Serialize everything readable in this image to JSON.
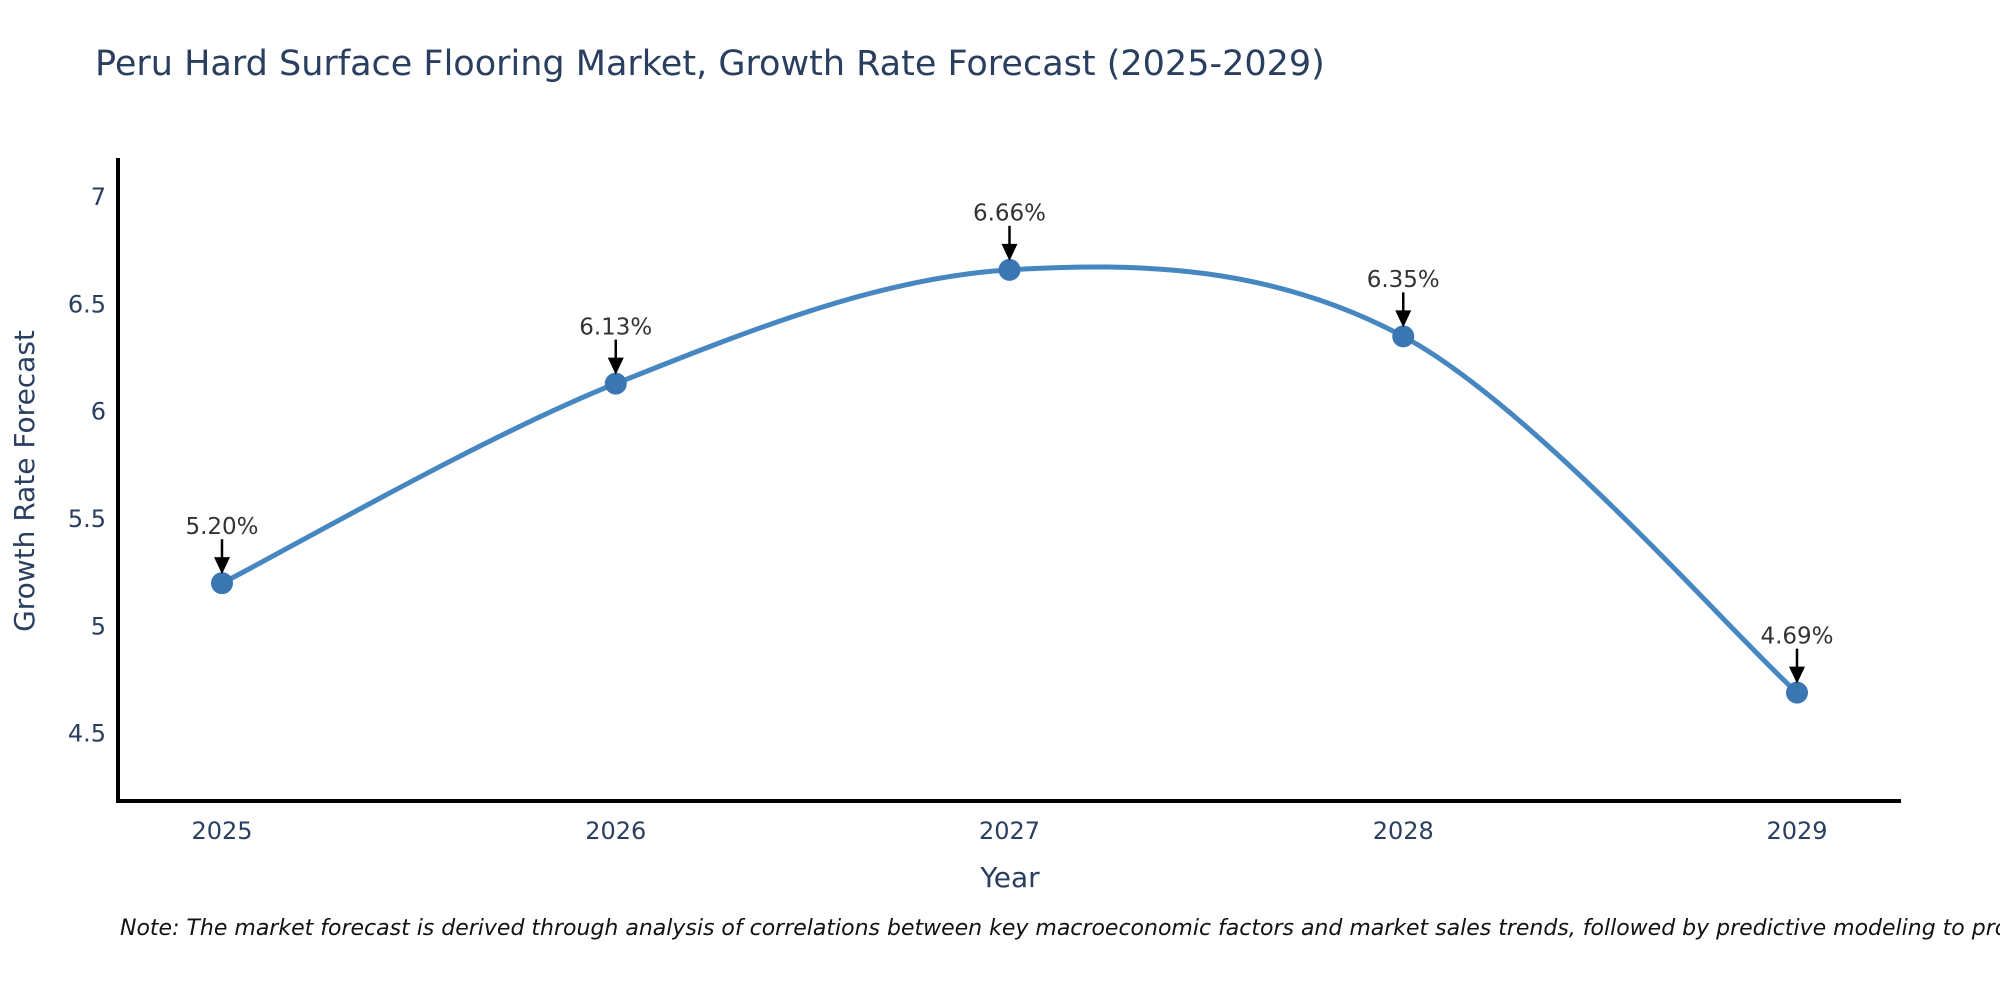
{
  "note": "Note: The market forecast is derived through analysis of correlations between key macroeconomic factors and market sales trends, followed by predictive modeling to project future sales",
  "chart_data": {
    "type": "line",
    "title": "Peru Hard Surface Flooring Market, Growth Rate Forecast (2025-2029)",
    "categories": [
      "2025",
      "2026",
      "2027",
      "2028",
      "2029"
    ],
    "values": [
      5.2,
      6.13,
      6.66,
      6.35,
      4.69
    ],
    "point_labels": [
      "5.20%",
      "6.13%",
      "6.66%",
      "6.35%",
      "4.69%"
    ],
    "xlabel": "Year",
    "ylabel": "Growth Rate Forecast",
    "yticks": [
      4.5,
      5,
      5.5,
      6,
      6.5,
      7
    ],
    "ylim": [
      4.185,
      7.172
    ],
    "line_shape": "spline",
    "grid": false,
    "legend": "none",
    "colors": {
      "line": "#4787c1",
      "marker": "#3a76b2",
      "axis_spine": "#000000",
      "tick_text": "#2a3f5f",
      "axis_title_text": "#2a3f5f",
      "title_text": "#2a3f5f",
      "annotation_text": "#333333",
      "arrow": "#000000",
      "background": "#ffffff"
    }
  }
}
